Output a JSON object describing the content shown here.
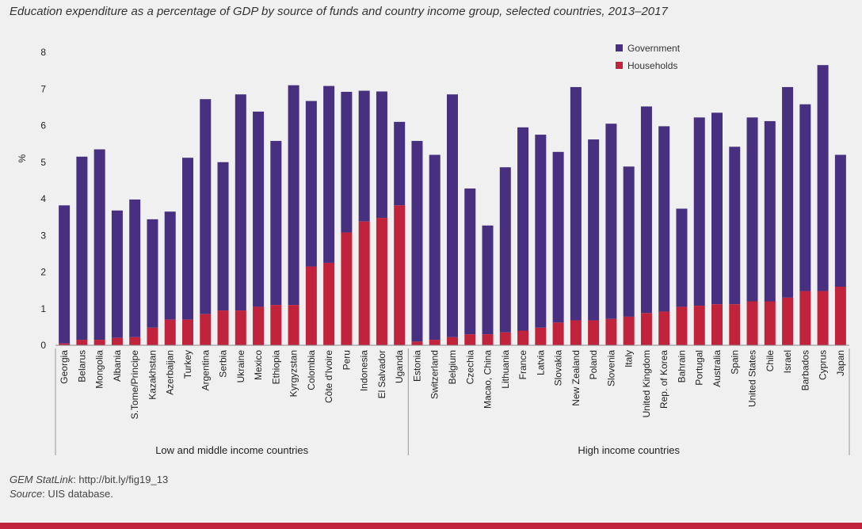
{
  "colors": {
    "government": "#46307f",
    "households": "#c0233b",
    "axis": "#888888"
  },
  "chart_data": {
    "type": "bar",
    "stacked": true,
    "title": "Education expenditure as a percentage of GDP by source of funds and country income group, selected countries, 2013–2017",
    "ylabel": "%",
    "ylim": [
      0,
      8
    ],
    "yticks": [
      "0",
      "1",
      "2",
      "3",
      "4",
      "5",
      "6",
      "7",
      "8"
    ],
    "legend_position": "top-right",
    "series_names": [
      "Government",
      "Households"
    ],
    "groups": [
      {
        "name": "Low and middle income countries",
        "categories": [
          "Georgia",
          "Belarus",
          "Mongolia",
          "Albania",
          "S.Tome/Principe",
          "Kazakhstan",
          "Azerbaijan",
          "Turkey",
          "Argentina",
          "Serbia",
          "Ukraine",
          "Mexico",
          "Ethiopia",
          "Kyrgyzstan",
          "Colombia",
          "Côte d'Ivoire",
          "Peru",
          "Indonesia",
          "El Salvador",
          "Uganda"
        ],
        "households": [
          0.05,
          0.15,
          0.15,
          0.2,
          0.22,
          0.48,
          0.7,
          0.7,
          0.85,
          0.95,
          0.95,
          1.05,
          1.1,
          1.1,
          2.15,
          2.25,
          3.08,
          3.38,
          3.48,
          3.82
        ],
        "total": [
          3.82,
          5.15,
          5.35,
          3.68,
          3.98,
          3.44,
          3.65,
          5.12,
          6.72,
          5.0,
          6.85,
          6.38,
          5.58,
          7.1,
          6.67,
          7.08,
          6.92,
          6.95,
          6.93,
          6.1
        ]
      },
      {
        "name": "High income countries",
        "categories": [
          "Estonia",
          "Switzerland",
          "Belgium",
          "Czechia",
          "Macao, China",
          "Lithuania",
          "France",
          "Latvia",
          "Slovakia",
          "New Zealand",
          "Poland",
          "Slovenia",
          "Italy",
          "United Kingdom",
          "Rep. of Korea",
          "Bahrain",
          "Portugal",
          "Australia",
          "Spain",
          "United States",
          "Chile",
          "Israel",
          "Barbados",
          "Cyprus",
          "Japan"
        ],
        "households": [
          0.1,
          0.15,
          0.22,
          0.3,
          0.3,
          0.35,
          0.4,
          0.48,
          0.62,
          0.68,
          0.68,
          0.72,
          0.78,
          0.88,
          0.92,
          1.05,
          1.08,
          1.12,
          1.12,
          1.2,
          1.2,
          1.3,
          1.48,
          1.48,
          1.6
        ],
        "total": [
          5.58,
          5.2,
          6.85,
          4.28,
          3.27,
          4.86,
          5.95,
          5.75,
          5.28,
          7.05,
          5.62,
          6.05,
          4.88,
          6.52,
          5.98,
          3.73,
          6.22,
          6.35,
          5.42,
          6.22,
          6.12,
          7.05,
          6.58,
          7.65,
          5.2
        ]
      }
    ]
  },
  "footer": {
    "statlink_label": "GEM StatLink",
    "statlink_url": ": http://bit.ly/fig19_13",
    "source_label": "Source",
    "source_text": ": UIS database."
  }
}
